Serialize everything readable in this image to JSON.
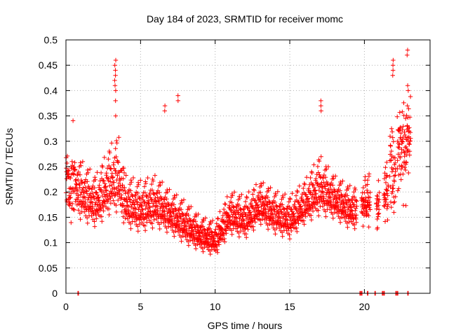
{
  "chart_data": {
    "type": "scatter",
    "title": "Day 184 of 2023, SRMTID for receiver momc",
    "xlabel": "GPS time / hours",
    "ylabel": "SRMTID / TECUs",
    "xlim": [
      0,
      24.4
    ],
    "ylim": [
      0,
      0.5
    ],
    "x_ticks": [
      0,
      5,
      10,
      15,
      20
    ],
    "x_tick_labels": [
      "0",
      "5",
      "10",
      "15",
      "20"
    ],
    "y_ticks": [
      0,
      0.05,
      0.1,
      0.15,
      0.2,
      0.25,
      0.3,
      0.35,
      0.4,
      0.45,
      0.5
    ],
    "y_tick_labels": [
      "0",
      "0.05",
      "0.1",
      "0.15",
      "0.2",
      "0.25",
      "0.3",
      "0.35",
      "0.4",
      "0.45",
      "0.5"
    ],
    "grid": true,
    "marker": "+",
    "color": "#ff0000",
    "series": [
      {
        "name": "SRMTID",
        "trend_x": [
          0,
          0.5,
          1,
          2,
          3,
          3.5,
          4,
          5,
          6,
          7,
          8,
          9,
          10,
          11,
          12,
          13,
          14,
          15,
          16,
          17,
          18,
          19,
          19.5
        ],
        "trend_y": [
          0.22,
          0.21,
          0.19,
          0.17,
          0.21,
          0.22,
          0.17,
          0.16,
          0.17,
          0.15,
          0.13,
          0.11,
          0.1,
          0.15,
          0.14,
          0.17,
          0.15,
          0.14,
          0.17,
          0.2,
          0.18,
          0.16,
          0.16
        ],
        "trend_spread": [
          0.07,
          0.07,
          0.07,
          0.06,
          0.08,
          0.09,
          0.06,
          0.06,
          0.06,
          0.05,
          0.05,
          0.04,
          0.04,
          0.05,
          0.05,
          0.05,
          0.05,
          0.05,
          0.05,
          0.07,
          0.05,
          0.05,
          0.05
        ],
        "sample_interval_hours": 0.011,
        "late_segments": [
          {
            "x_start": 19.8,
            "x_end": 20.4,
            "y_center": 0.17,
            "y_spread": 0.06
          },
          {
            "x_start": 20.8,
            "x_end": 21.0,
            "y_center": 0.17,
            "y_spread": 0.05
          },
          {
            "x_start": 21.3,
            "x_end": 21.6,
            "y_center": 0.19,
            "y_spread": 0.07
          },
          {
            "x_start": 21.7,
            "x_end": 22.1,
            "y_center": 0.23,
            "y_spread": 0.1
          },
          {
            "x_start": 22.2,
            "x_end": 22.8,
            "y_center": 0.27,
            "y_spread": 0.1
          },
          {
            "x_start": 22.8,
            "x_end": 23.1,
            "y_center": 0.3,
            "y_spread": 0.1
          }
        ],
        "spikes": [
          {
            "x": 3.3,
            "y": [
              0.35,
              0.38,
              0.4,
              0.41,
              0.42,
              0.43,
              0.44,
              0.45,
              0.46
            ]
          },
          {
            "x": 6.6,
            "y": [
              0.36,
              0.37
            ]
          },
          {
            "x": 7.5,
            "y": [
              0.38,
              0.39
            ]
          },
          {
            "x": 17.1,
            "y": [
              0.36,
              0.37,
              0.38
            ]
          },
          {
            "x": 21.9,
            "y": [
              0.43,
              0.44,
              0.45,
              0.46
            ]
          },
          {
            "x": 22.9,
            "y": [
              0.37,
              0.4,
              0.41,
              0.47,
              0.48
            ]
          }
        ],
        "zero_points": [
          0.8,
          19.7,
          19.8,
          20.2,
          20.7,
          21.2,
          21.3,
          22.1,
          22.2,
          22.9
        ]
      }
    ]
  }
}
